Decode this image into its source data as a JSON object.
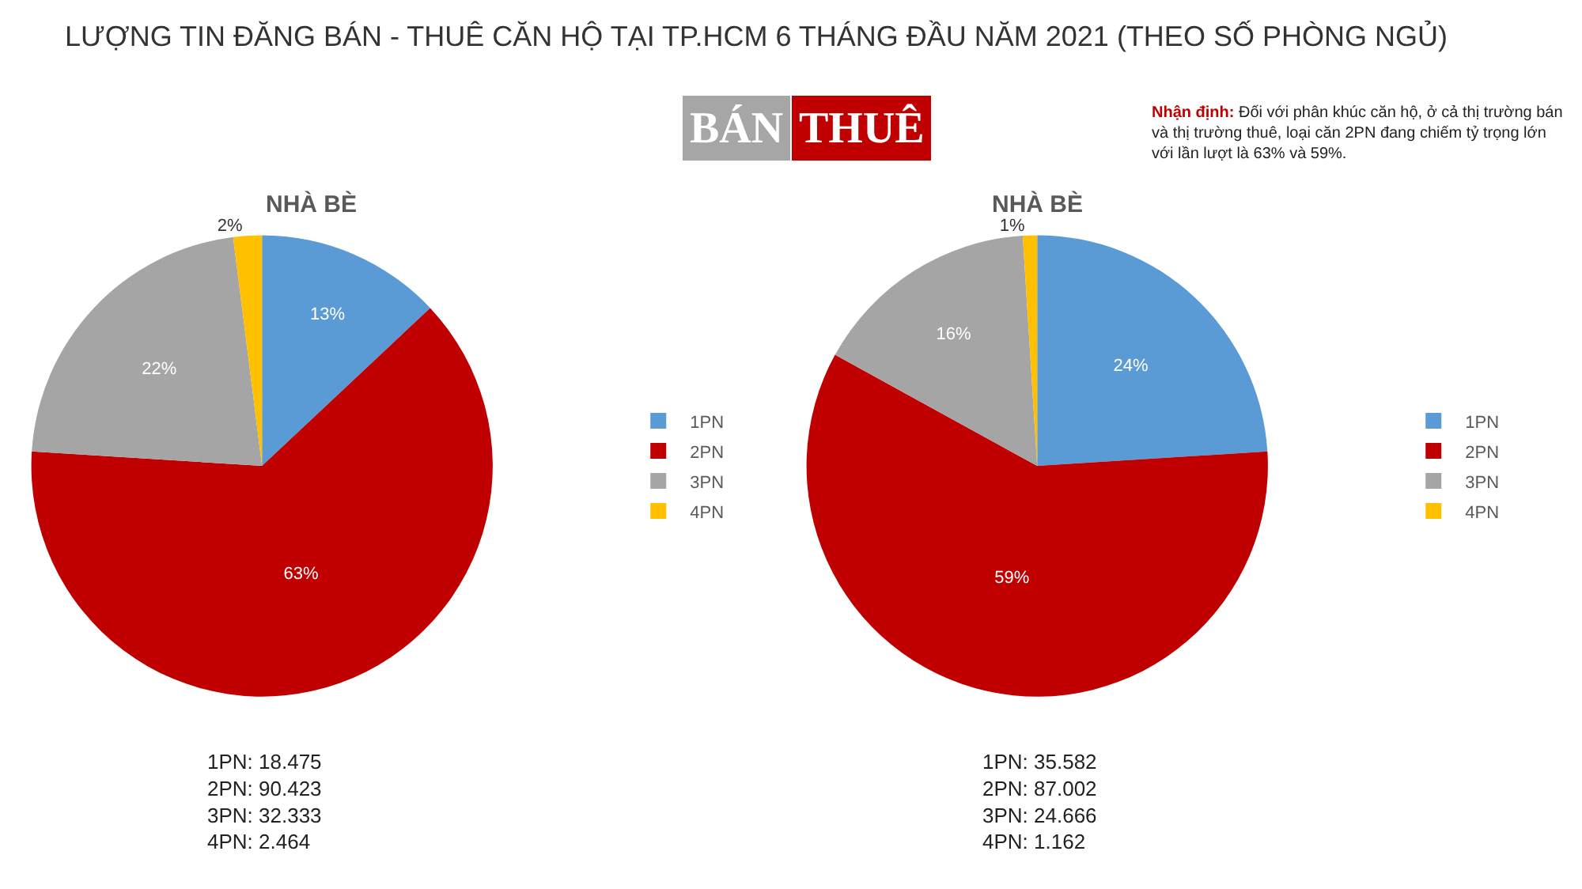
{
  "chart_data": [
    {
      "type": "pie",
      "title": "NHÀ BÈ",
      "categories": [
        "1PN",
        "2PN",
        "3PN",
        "4PN"
      ],
      "values": [
        13,
        63,
        22,
        2
      ],
      "value_labels": [
        "13%",
        "63%",
        "22%",
        "2%"
      ],
      "colors": [
        "#5b9bd5",
        "#c00000",
        "#a5a5a5",
        "#ffc000"
      ],
      "legend": "right",
      "annotations": [
        "LƯỢNG TIN ĐĂNG BÁN - THUÊ CĂN HỘ TẠI TP.HCM 6 THÁNG ĐẦU NĂM 2021 (THEO SỐ PHÒNG NGỦ)",
        "Nhận định: Đối với phân khúc căn hộ, ở cả thị trường bán\nvà thị trường thuê, loại căn 2PN đang chiếm tỷ trọng lớn\nvới lần lượt là 63% và 59%.",
        "BÁN",
        "1PN: 18.475\n2PN: 90.423\n3PN: 32.333\n4PN: 2.464"
      ]
    },
    {
      "type": "pie",
      "title": "NHÀ BÈ",
      "categories": [
        "1PN",
        "2PN",
        "3PN",
        "4PN"
      ],
      "values": [
        24,
        59,
        16,
        1
      ],
      "value_labels": [
        "24%",
        "59%",
        "16%",
        "1%"
      ],
      "colors": [
        "#5b9bd5",
        "#c00000",
        "#a5a5a5",
        "#ffc000"
      ],
      "legend": "right",
      "annotations": [
        "THUÊ",
        "1PN: 35.582\n2PN: 87.002\n3PN: 24.666\n4PN: 1.162"
      ]
    }
  ]
}
